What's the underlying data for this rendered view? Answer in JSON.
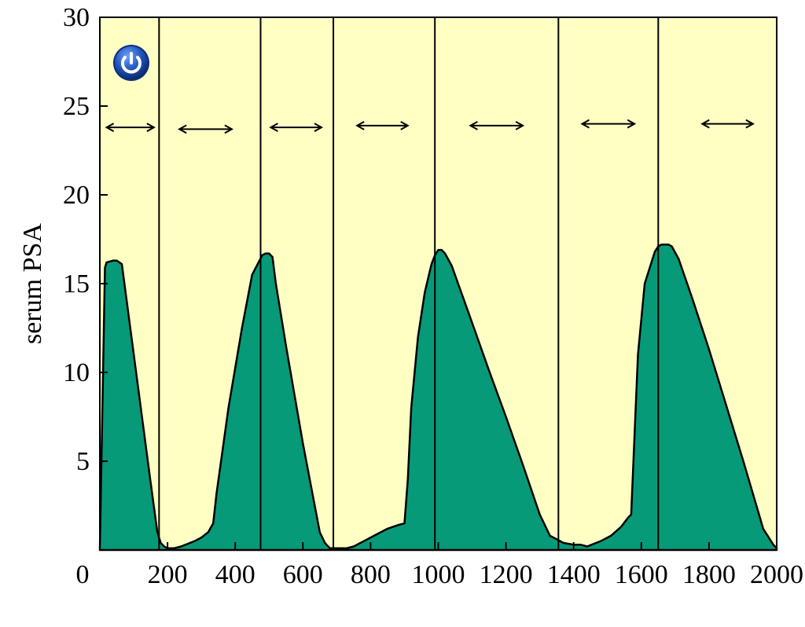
{
  "chart_data": {
    "type": "area",
    "title": "",
    "xlabel": "",
    "ylabel": "serum PSA",
    "xlim": [
      0,
      2000
    ],
    "ylim": [
      0,
      30
    ],
    "xticks": [
      0,
      200,
      400,
      600,
      800,
      1000,
      1200,
      1400,
      1600,
      1800,
      2000
    ],
    "yticks": [
      5,
      10,
      15,
      20,
      25,
      30
    ],
    "grid": false,
    "background_color": "#ffffc4",
    "fill_color": "#069a78",
    "series": [
      {
        "values_x": [
          0,
          15,
          20,
          40,
          50,
          65,
          150,
          170,
          180,
          190,
          200,
          210,
          220,
          240,
          280,
          300,
          320,
          335,
          345,
          380,
          420,
          450,
          480,
          490,
          500,
          510,
          520,
          550,
          600,
          650,
          665,
          670,
          680,
          690,
          700,
          710,
          730,
          750,
          780,
          810,
          850,
          880,
          900,
          910,
          920,
          940,
          960,
          980,
          990,
          1000,
          1010,
          1020,
          1040,
          1100,
          1150,
          1200,
          1250,
          1300,
          1330,
          1350,
          1370,
          1400,
          1420,
          1440,
          1480,
          1510,
          1540,
          1560,
          1570,
          1580,
          1590,
          1610,
          1640,
          1650,
          1660,
          1670,
          1680,
          1690,
          1710,
          1750,
          1800,
          1850,
          1900,
          1940,
          1960,
          1980,
          1990,
          2000
        ],
        "values_y": [
          0,
          15.9,
          16.2,
          16.3,
          16.3,
          16.1,
          3.8,
          1.0,
          0.4,
          0.2,
          0.1,
          0.1,
          0.1,
          0.2,
          0.5,
          0.7,
          1.0,
          1.5,
          3.2,
          8.0,
          12.5,
          15.5,
          16.6,
          16.7,
          16.7,
          16.5,
          15.0,
          11.5,
          6.0,
          1.0,
          0.4,
          0.3,
          0.1,
          0.1,
          0.1,
          0.1,
          0.1,
          0.2,
          0.5,
          0.8,
          1.2,
          1.4,
          1.5,
          4.0,
          8.0,
          12.0,
          14.5,
          16.1,
          16.6,
          16.9,
          16.9,
          16.7,
          16.0,
          12.8,
          10.1,
          7.5,
          4.8,
          2.0,
          0.8,
          0.6,
          0.4,
          0.3,
          0.3,
          0.2,
          0.5,
          0.8,
          1.3,
          1.8,
          2.0,
          6.5,
          11.0,
          15.0,
          16.8,
          17.1,
          17.2,
          17.2,
          17.2,
          17.1,
          16.4,
          14.2,
          11.3,
          8.2,
          5.1,
          2.5,
          1.2,
          0.6,
          0.3,
          0.1
        ]
      }
    ],
    "vertical_lines_x": [
      175,
      475,
      690,
      990,
      1355,
      1650
    ],
    "arrows": [
      {
        "x1": 20,
        "x2": 160,
        "y": 23.8
      },
      {
        "x1": 235,
        "x2": 390,
        "y": 23.7
      },
      {
        "x1": 505,
        "x2": 655,
        "y": 23.8
      },
      {
        "x1": 760,
        "x2": 910,
        "y": 23.9
      },
      {
        "x1": 1095,
        "x2": 1250,
        "y": 23.9
      },
      {
        "x1": 1425,
        "x2": 1580,
        "y": 24.0
      },
      {
        "x1": 1780,
        "x2": 1930,
        "y": 24.0
      }
    ]
  },
  "icon": {
    "name": "power-icon",
    "color": "#1f53b8"
  }
}
